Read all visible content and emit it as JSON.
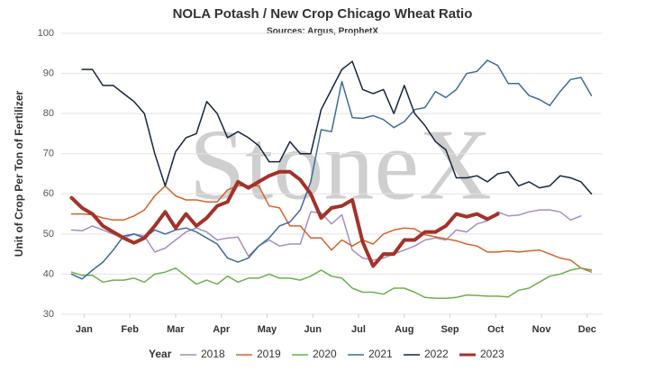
{
  "chart_data": {
    "type": "line",
    "title": "NOLA Potash / New Crop Chicago Wheat Ratio",
    "subtitle": "Sources: Argus, ProphetX",
    "y_label": "Unit of Crop Per Ton of Fertilizer",
    "legend_title": "Year",
    "watermark": "StoneX",
    "grid": true,
    "legend": "bottom",
    "xlim": [
      0,
      52
    ],
    "ylim": [
      30,
      100
    ],
    "yticks": [
      30,
      40,
      50,
      60,
      70,
      80,
      90,
      100
    ],
    "xticks": [
      {
        "value": 2.2,
        "label": "Jan"
      },
      {
        "value": 6.6,
        "label": "Feb"
      },
      {
        "value": 11,
        "label": "Mar"
      },
      {
        "value": 15.4,
        "label": "Apr"
      },
      {
        "value": 19.8,
        "label": "May"
      },
      {
        "value": 24.2,
        "label": "Jun"
      },
      {
        "value": 28.6,
        "label": "Jul"
      },
      {
        "value": 33,
        "label": "Aug"
      },
      {
        "value": 37.4,
        "label": "Sep"
      },
      {
        "value": 41.8,
        "label": "Oct"
      },
      {
        "value": 46.2,
        "label": "Nov"
      },
      {
        "value": 50.6,
        "label": "Dec"
      }
    ],
    "x": [
      1,
      2,
      3,
      4,
      5,
      6,
      7,
      8,
      9,
      10,
      11,
      12,
      13,
      14,
      15,
      16,
      17,
      18,
      19,
      20,
      21,
      22,
      23,
      24,
      25,
      26,
      27,
      28,
      29,
      30,
      31,
      32,
      33,
      34,
      35,
      36,
      37,
      38,
      39,
      40,
      41,
      42,
      43,
      44,
      45,
      46,
      47,
      48,
      49,
      50,
      51
    ],
    "series": [
      {
        "name": "2018",
        "color": "#a48fbf",
        "width": 1.5,
        "values": [
          51,
          50.8,
          52,
          51,
          50,
          49,
          50,
          49.5,
          45.5,
          46.5,
          48.5,
          50.5,
          51.5,
          50.5,
          48.5,
          49,
          49.2,
          44.5,
          47,
          48.5,
          47,
          47.5,
          47.5,
          55.5,
          55.3,
          52.5,
          54.8,
          46,
          44,
          43.5,
          44,
          45,
          46,
          47,
          48.5,
          49,
          48.5,
          51,
          50.5,
          52.5,
          53.3,
          55.5,
          54.5,
          54.7,
          55.5,
          56,
          56,
          55.5,
          53.5,
          54.5,
          null
        ]
      },
      {
        "name": "2019",
        "color": "#d2632a",
        "width": 1.5,
        "values": [
          55,
          55,
          54.8,
          54,
          53.5,
          53.5,
          54.5,
          56,
          59.5,
          62,
          59.5,
          58.5,
          58.5,
          58,
          58,
          61,
          62,
          62,
          62,
          57,
          56.5,
          52,
          52,
          49,
          49,
          46,
          48.5,
          47,
          48.5,
          47.5,
          50,
          51,
          51.5,
          51.3,
          49.8,
          49.3,
          48.8,
          48.3,
          47.5,
          47,
          45.5,
          45.5,
          45.8,
          45.5,
          45.8,
          46,
          45,
          44,
          43.5,
          41.5,
          41
        ]
      },
      {
        "name": "2020",
        "color": "#6ab04c",
        "width": 1.5,
        "values": [
          40.5,
          39.7,
          39.7,
          38,
          38.5,
          38.5,
          39,
          38,
          40,
          40.5,
          41.5,
          39.5,
          37.5,
          38.5,
          37.5,
          39.5,
          38,
          39,
          39,
          40,
          39,
          39,
          38.5,
          39.5,
          41,
          39.5,
          39,
          36.5,
          35.5,
          35.5,
          35,
          36.5,
          36.5,
          35.5,
          34.2,
          34,
          34,
          34.2,
          34.8,
          34.7,
          34.5,
          34.5,
          34.3,
          36,
          36.5,
          38,
          39.5,
          40,
          41,
          41.5,
          40.5
        ]
      },
      {
        "name": "2021",
        "color": "#3e6b9c",
        "width": 1.5,
        "values": [
          40,
          38.8,
          41,
          43,
          46,
          49.5,
          50,
          49,
          51,
          50,
          51,
          51.5,
          50.5,
          49,
          47.5,
          44,
          43,
          44,
          47,
          49,
          52,
          53,
          56,
          63,
          76,
          75.5,
          88,
          79,
          78.8,
          79.5,
          78.5,
          76.5,
          78,
          81,
          81.5,
          85.5,
          84,
          86,
          90,
          90.5,
          93.3,
          92,
          87.5,
          87.5,
          84.5,
          83.5,
          82,
          85.5,
          88.5,
          89,
          84.5
        ]
      },
      {
        "name": "2022",
        "color": "#16253d",
        "width": 1.5,
        "values": [
          null,
          91,
          91,
          87,
          87,
          85,
          83,
          80,
          70,
          62,
          70.5,
          74,
          75,
          83,
          80,
          74,
          75.5,
          74,
          72,
          68,
          68,
          73,
          70,
          70,
          81,
          86,
          91,
          93,
          86,
          85,
          86,
          80,
          87,
          80,
          77,
          73,
          71,
          64,
          64,
          64.5,
          63,
          65,
          65.5,
          62,
          63,
          61.5,
          62,
          64.5,
          64,
          63,
          60
        ]
      },
      {
        "name": "2023",
        "color": "#a3322a",
        "width": 4,
        "values": [
          59,
          56.5,
          55,
          52,
          50.5,
          49,
          47.8,
          49,
          52,
          55.5,
          51.5,
          55,
          52,
          54,
          57,
          58,
          63,
          61.5,
          63,
          64.5,
          65.5,
          65.5,
          63.5,
          60,
          54,
          56.5,
          57,
          58.5,
          48,
          42,
          45,
          45,
          48.5,
          48.5,
          50.5,
          50.5,
          52,
          55,
          54.3,
          55,
          53.7,
          55,
          null,
          null,
          null,
          null,
          null,
          null,
          null,
          null,
          null
        ]
      }
    ]
  }
}
